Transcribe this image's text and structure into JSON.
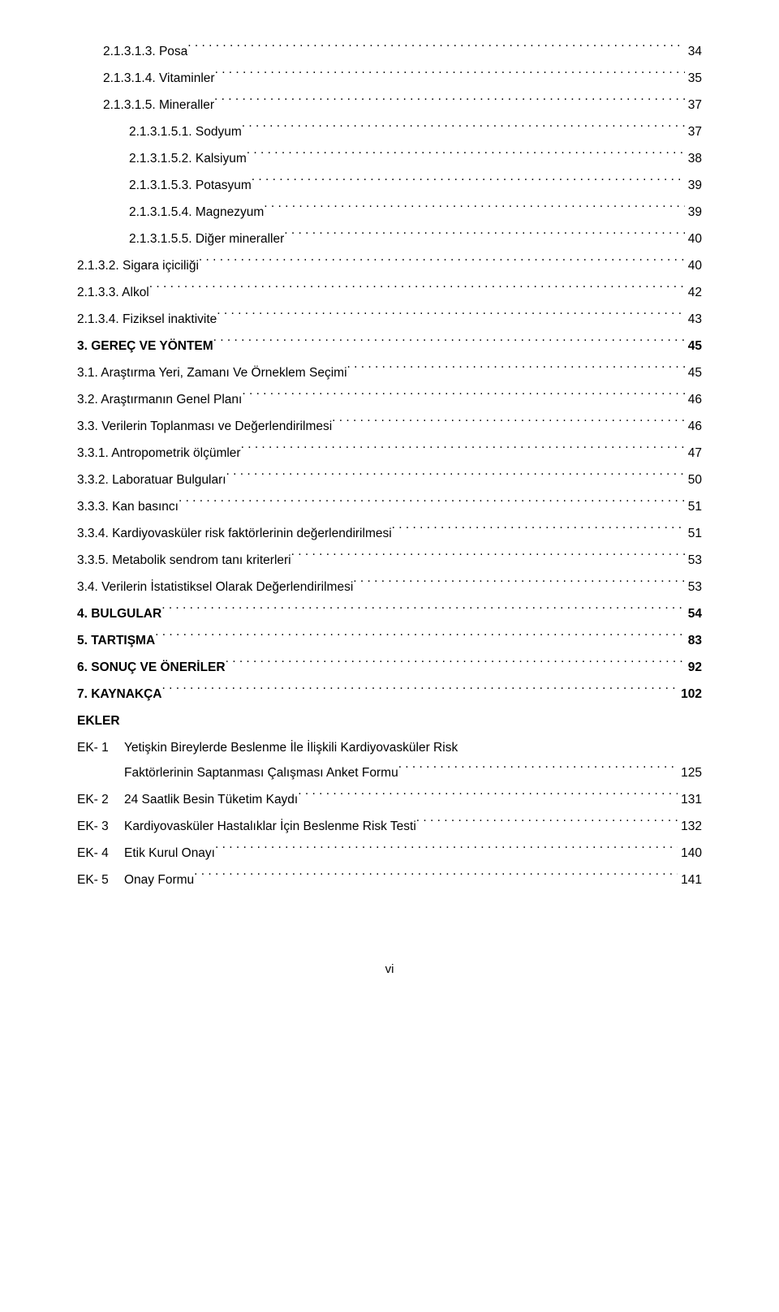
{
  "toc": [
    {
      "indent": 1,
      "bold": false,
      "label": "2.1.3.1.3. Posa",
      "page": "34"
    },
    {
      "indent": 1,
      "bold": false,
      "label": "2.1.3.1.4. Vitaminler",
      "page": "35"
    },
    {
      "indent": 1,
      "bold": false,
      "label": "2.1.3.1.5. Mineraller",
      "page": "37"
    },
    {
      "indent": 2,
      "bold": false,
      "label": "2.1.3.1.5.1. Sodyum",
      "page": "37"
    },
    {
      "indent": 2,
      "bold": false,
      "label": "2.1.3.1.5.2. Kalsiyum",
      "page": "38"
    },
    {
      "indent": 2,
      "bold": false,
      "label": "2.1.3.1.5.3. Potasyum",
      "page": "39"
    },
    {
      "indent": 2,
      "bold": false,
      "label": "2.1.3.1.5.4. Magnezyum",
      "page": "39"
    },
    {
      "indent": 2,
      "bold": false,
      "label": "2.1.3.1.5.5. Diğer mineraller",
      "page": "40"
    },
    {
      "indent": 0,
      "bold": false,
      "label": "2.1.3.2. Sigara içiciliği",
      "page": "40"
    },
    {
      "indent": 0,
      "bold": false,
      "label": "2.1.3.3. Alkol",
      "page": "42"
    },
    {
      "indent": 0,
      "bold": false,
      "label": "2.1.3.4. Fiziksel inaktivite",
      "page": "43"
    },
    {
      "indent": 0,
      "bold": true,
      "label": "3. GEREÇ VE YÖNTEM",
      "page": "45"
    },
    {
      "indent": 0,
      "bold": false,
      "label": "3.1. Araştırma Yeri, Zamanı Ve Örneklem Seçimi",
      "page": "45"
    },
    {
      "indent": 0,
      "bold": false,
      "label": "3.2. Araştırmanın Genel Planı",
      "page": "46"
    },
    {
      "indent": 0,
      "bold": false,
      "label": "3.3. Verilerin Toplanması ve Değerlendirilmesi",
      "page": "46"
    },
    {
      "indent": 0,
      "bold": false,
      "label": "3.3.1. Antropometrik ölçümler",
      "page": "47"
    },
    {
      "indent": 0,
      "bold": false,
      "label": "3.3.2. Laboratuar Bulguları",
      "page": "50"
    },
    {
      "indent": 0,
      "bold": false,
      "label": "3.3.3. Kan basıncı",
      "page": "51"
    },
    {
      "indent": 0,
      "bold": false,
      "label": "3.3.4. Kardiyovasküler risk faktörlerinin değerlendirilmesi",
      "page": "51"
    },
    {
      "indent": 0,
      "bold": false,
      "label": "3.3.5. Metabolik sendrom tanı kriterleri",
      "page": "53"
    },
    {
      "indent": 0,
      "bold": false,
      "label": "3.4. Verilerin İstatistiksel Olarak Değerlendirilmesi",
      "page": "53"
    },
    {
      "indent": 0,
      "bold": true,
      "label": "4. BULGULAR",
      "page": "54"
    },
    {
      "indent": 0,
      "bold": true,
      "label": "5. TARTIŞMA",
      "page": "83"
    },
    {
      "indent": 0,
      "bold": true,
      "label": "6. SONUÇ VE ÖNERİLER",
      "page": "92"
    },
    {
      "indent": 0,
      "bold": true,
      "label": "7. KAYNAKÇA",
      "page": "102"
    }
  ],
  "ekler_header": "EKLER",
  "ekler": [
    {
      "prefix": "EK- 1",
      "line1": "Yetişkin Bireylerde Beslenme İle İlişkili Kardiyovasküler  Risk",
      "line2": "Faktörlerinin Saptanması Çalışması Anket Formu",
      "page": "125"
    },
    {
      "prefix": "EK- 2",
      "line1": "24 Saatlik Besin Tüketim Kaydı",
      "line2": null,
      "page": "131"
    },
    {
      "prefix": "EK- 3",
      "line1": "Kardiyovasküler Hastalıklar İçin Beslenme Risk Testi",
      "line2": null,
      "page": "132"
    },
    {
      "prefix": "EK- 4",
      "line1": "Etik Kurul Onayı",
      "line2": null,
      "page": "140"
    },
    {
      "prefix": "EK- 5",
      "line1": "Onay Formu",
      "line2": null,
      "page": "141"
    }
  ],
  "page_number": "vi"
}
